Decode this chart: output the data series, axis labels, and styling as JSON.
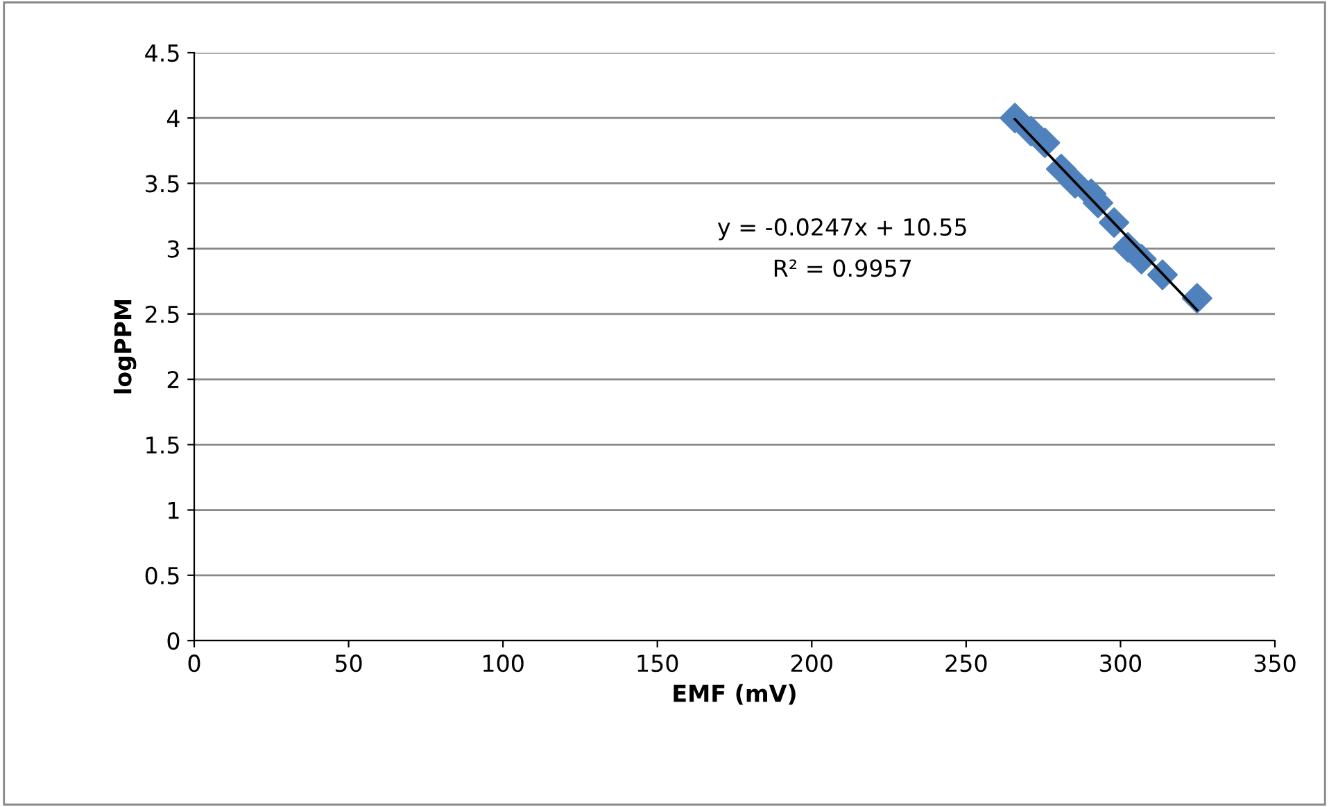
{
  "chart_data": {
    "type": "scatter",
    "xlabel": "EMF (mV)",
    "ylabel": "logPPM",
    "xlim": [
      0,
      350
    ],
    "xticks": [
      0,
      50,
      100,
      150,
      200,
      250,
      300,
      350
    ],
    "ylim": [
      0,
      4.5
    ],
    "yticks": [
      0,
      0.5,
      1,
      1.5,
      2,
      2.5,
      3,
      3.5,
      4,
      4.5
    ],
    "grid": "y",
    "legend": false,
    "annotations": [
      "y = -0.0247x + 10.55",
      "R² = 0.9957"
    ],
    "series": [
      {
        "marker": "diamond",
        "color": "#4f81bd",
        "x": [
          265.8,
          271,
          275.5,
          280.8,
          285.3,
          290.5,
          292.7,
          297.9,
          302.4,
          306.8,
          313.6,
          324.8
        ],
        "values": [
          4.0,
          3.9,
          3.81,
          3.61,
          3.5,
          3.42,
          3.35,
          3.2,
          3.01,
          2.92,
          2.8,
          2.62
        ]
      },
      {
        "type": "line",
        "marker": "none",
        "color": "#000000",
        "line_style": "solid",
        "x": [
          265.8,
          324.8
        ],
        "values": [
          3.99,
          2.53
        ]
      }
    ]
  }
}
